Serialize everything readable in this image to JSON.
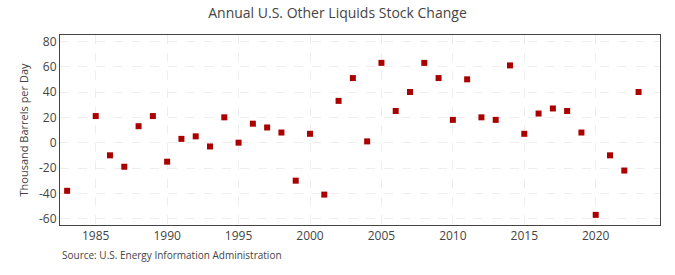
{
  "chart_data": {
    "type": "scatter",
    "title": "Annual U.S. Other Liquids Stock Change",
    "ylabel": "Thousand Barrels per Day",
    "source": "Source: U.S. Energy Information Administration",
    "x": [
      1983,
      1985,
      1986,
      1987,
      1988,
      1989,
      1990,
      1991,
      1992,
      1993,
      1994,
      1995,
      1996,
      1997,
      1998,
      1999,
      2000,
      2001,
      2002,
      2003,
      2004,
      2005,
      2006,
      2007,
      2008,
      2009,
      2010,
      2011,
      2012,
      2013,
      2014,
      2015,
      2016,
      2017,
      2018,
      2019,
      2020,
      2021,
      2022,
      2023
    ],
    "values": [
      -38,
      21,
      -10,
      -19,
      13,
      21,
      -15,
      3,
      5,
      -3,
      20,
      0,
      15,
      12,
      8,
      -30,
      7,
      -41,
      33,
      51,
      1,
      63,
      25,
      40,
      63,
      51,
      18,
      50,
      20,
      18,
      61,
      7,
      23,
      27,
      25,
      8,
      -57,
      -10,
      -22,
      40
    ],
    "color": "#aa0000",
    "marker": "square",
    "grid": true,
    "xlim": [
      1982.5,
      2024.5
    ],
    "ylim": [
      -65,
      85
    ],
    "xticks": [
      1985,
      1990,
      1995,
      2000,
      2005,
      2010,
      2015,
      2020
    ],
    "yticks": [
      -60,
      -40,
      -20,
      0,
      20,
      40,
      60,
      80
    ]
  }
}
